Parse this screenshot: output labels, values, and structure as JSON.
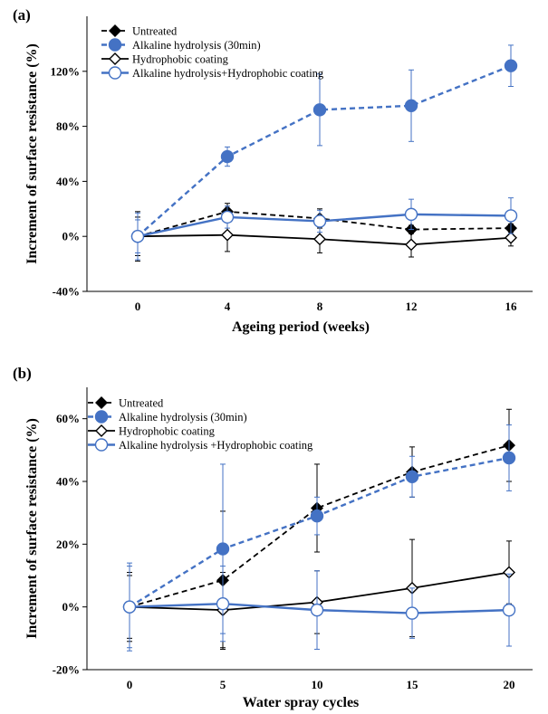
{
  "chart_data": [
    {
      "type": "line",
      "panel_label": "(a)",
      "title": "",
      "xlabel": "Ageing period (weeks)",
      "ylabel": "Increment of surface resistance (%)",
      "x": [
        0,
        4,
        8,
        12,
        16
      ],
      "x_tick_labels": [
        "0",
        "4",
        "8",
        "12",
        "16"
      ],
      "ylim": [
        -40,
        160
      ],
      "y_ticks": [
        -40,
        0,
        40,
        80,
        120
      ],
      "y_tick_labels": [
        "-40%",
        "0%",
        "40%",
        "80%",
        "120%"
      ],
      "grid": false,
      "legend_position": "top-left",
      "series": [
        {
          "name": "Untreated",
          "color": "#000000",
          "dash": true,
          "marker": "filled-diamond",
          "values": [
            0,
            18,
            13,
            5,
            6
          ],
          "errors": [
            18,
            6,
            7,
            3,
            3
          ]
        },
        {
          "name": "Alkaline hydrolysis (30min)",
          "color": "#4472c4",
          "dash": true,
          "marker": "filled-circle",
          "values": [
            0,
            58,
            92,
            95,
            124
          ],
          "errors": [
            12,
            7,
            26,
            26,
            15
          ]
        },
        {
          "name": "Hydrophobic coating",
          "color": "#000000",
          "dash": false,
          "marker": "open-diamond",
          "values": [
            0,
            1,
            -2,
            -6,
            -1
          ],
          "errors": [
            14,
            12,
            10,
            9,
            6
          ]
        },
        {
          "name": "Alkaline hydrolysis+Hydrophobic coating",
          "color": "#4472c4",
          "dash": false,
          "marker": "open-circle",
          "values": [
            0,
            14,
            11,
            16,
            15
          ],
          "errors": [
            17,
            8,
            8,
            11,
            13
          ]
        }
      ]
    },
    {
      "type": "line",
      "panel_label": "(b)",
      "title": "",
      "xlabel": "Water spray cycles",
      "ylabel": "Increment of surface resistance (%)",
      "x": [
        0,
        5,
        10,
        15,
        20
      ],
      "x_tick_labels": [
        "0",
        "5",
        "10",
        "15",
        "20"
      ],
      "ylim": [
        -20,
        70
      ],
      "y_ticks": [
        -20,
        0,
        20,
        40,
        60
      ],
      "y_tick_labels": [
        "-20%",
        "0%",
        "20%",
        "40%",
        "60%"
      ],
      "grid": false,
      "legend_position": "top-left",
      "series": [
        {
          "name": "Untreated",
          "color": "#000000",
          "dash": true,
          "marker": "filled-diamond",
          "values": [
            0,
            8.5,
            31.5,
            43,
            51.5
          ],
          "errors": [
            10,
            22,
            14,
            8,
            11.5
          ]
        },
        {
          "name": "Alkaline hydrolysis (30min)",
          "color": "#4472c4",
          "dash": true,
          "marker": "filled-circle",
          "values": [
            0,
            18.5,
            29,
            41.5,
            47.5
          ],
          "errors": [
            13,
            27,
            6,
            6.5,
            10.5
          ]
        },
        {
          "name": "Hydrophobic coating",
          "color": "#000000",
          "dash": false,
          "marker": "open-diamond",
          "values": [
            0,
            -1,
            1.5,
            6,
            11
          ],
          "errors": [
            11,
            12,
            10,
            15.5,
            10
          ]
        },
        {
          "name": "Alkaline hydrolysis +Hydrophobic coating",
          "color": "#4472c4",
          "dash": false,
          "marker": "open-circle",
          "values": [
            0,
            1,
            -1,
            -2,
            -1
          ],
          "errors": [
            14,
            12,
            12.5,
            8,
            11.5
          ]
        }
      ]
    }
  ]
}
